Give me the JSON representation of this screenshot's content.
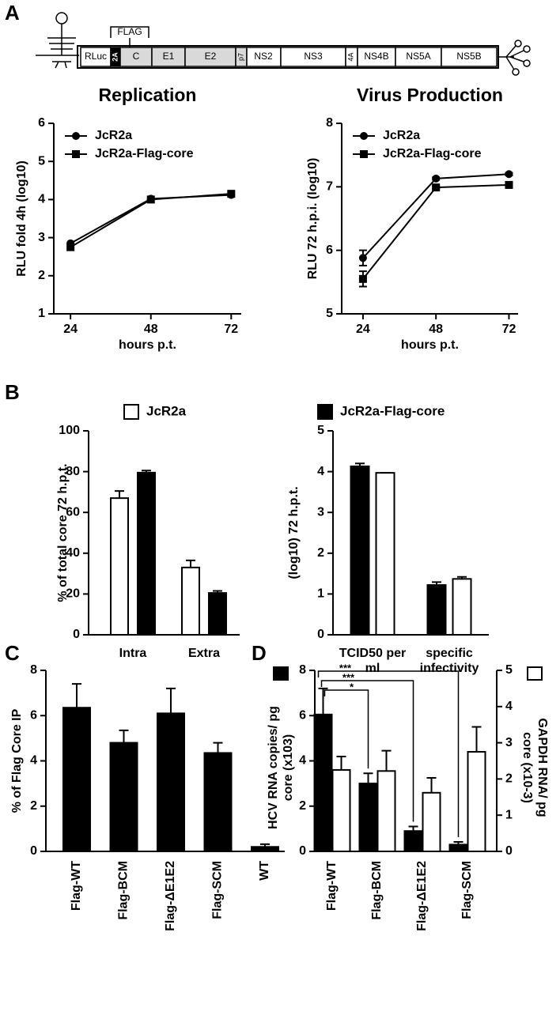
{
  "panel_labels": [
    "A",
    "B",
    "C",
    "D"
  ],
  "genome": {
    "flag": "FLAG",
    "segments": [
      "RLuc",
      "2A",
      "C",
      "E1",
      "E2",
      "p7",
      "NS2",
      "NS3",
      "4A",
      "NS4B",
      "NS5A",
      "NS5B"
    ]
  },
  "chart_data": [
    {
      "type": "line",
      "title": "Replication",
      "x_label": "hours p.t.",
      "y_label": "RLU fold 4h (log10)",
      "x": [
        24,
        48,
        72
      ],
      "xlim": [
        19,
        75
      ],
      "xticks": [
        24,
        48,
        72
      ],
      "ylim": [
        1,
        6
      ],
      "yticks": [
        1,
        2,
        3,
        4,
        5,
        6
      ],
      "legend": "upper left",
      "series": [
        {
          "name": "JcR2a",
          "marker": "circle",
          "color": "#000000",
          "values": [
            2.85,
            4.02,
            4.12
          ]
        },
        {
          "name": "JcR2a-Flag-core",
          "marker": "square",
          "color": "#000000",
          "values": [
            2.75,
            4.0,
            4.15
          ]
        }
      ]
    },
    {
      "type": "line",
      "title": "Virus Production",
      "x_label": "hours p.t.",
      "y_label": "RLU 72 h.p.i. (log10)",
      "x": [
        24,
        48,
        72
      ],
      "xlim": [
        17,
        75
      ],
      "xticks": [
        24,
        48,
        72
      ],
      "ylim": [
        5,
        8
      ],
      "yticks": [
        5,
        6,
        7,
        8
      ],
      "legend": "upper left",
      "series": [
        {
          "name": "JcR2a",
          "marker": "circle",
          "color": "#000000",
          "values": [
            5.88,
            7.13,
            7.2
          ],
          "errors": [
            0.12,
            0.02,
            0.02
          ]
        },
        {
          "name": "JcR2a-Flag-core",
          "marker": "square",
          "color": "#000000",
          "values": [
            5.55,
            6.99,
            7.03
          ],
          "errors": [
            0.12,
            0.02,
            0.02
          ]
        }
      ]
    },
    {
      "type": "bar",
      "y_label": "% of total core 72 h.p.t.",
      "categories": [
        "Intra",
        "Extra"
      ],
      "ylim": [
        0,
        100
      ],
      "yticks": [
        0,
        20,
        40,
        60,
        80,
        100
      ],
      "series": [
        {
          "name": "JcR2a",
          "color": "#ffffff",
          "values": [
            67,
            33
          ],
          "errors": [
            3.5,
            3.5
          ]
        },
        {
          "color": "#000000",
          "values": [
            79.5,
            20.5
          ],
          "errors": [
            1,
            1
          ]
        }
      ]
    },
    {
      "type": "bar",
      "y_label": "(log10) 72 h.p.t.",
      "categories": [
        "TCID50 per ml",
        "specific infectivity"
      ],
      "ylim": [
        0,
        5
      ],
      "yticks": [
        0,
        1,
        2,
        3,
        4,
        5
      ],
      "series": [
        {
          "name": "JcR2a-Flag-core",
          "color": "#000000",
          "values": [
            4.13,
            1.22
          ],
          "errors": [
            0.07,
            0.07
          ]
        },
        {
          "color": "#ffffff",
          "values": [
            3.97,
            1.37
          ],
          "errors": [
            0.0,
            0.05
          ]
        }
      ]
    },
    {
      "type": "bar",
      "y_label": "% of Flag Core IP",
      "categories": [
        "Flag-WT",
        "Flag-BCM",
        "Flag-ΔE1E2",
        "Flag-SCM",
        "WT"
      ],
      "ylim": [
        0,
        8
      ],
      "yticks": [
        0,
        2,
        4,
        6,
        8
      ],
      "series": [
        {
          "color": "#000000",
          "values": [
            6.35,
            4.8,
            6.1,
            4.35,
            0.2
          ],
          "errors": [
            1.05,
            0.55,
            1.1,
            0.45,
            0.12
          ]
        }
      ]
    },
    {
      "type": "bar",
      "categories": [
        "Flag-WT",
        "Flag-BCM",
        "Flag-ΔE1E2",
        "Flag-SCM"
      ],
      "ylim": [
        0,
        8
      ],
      "yticks": [
        0,
        2,
        4,
        6,
        8
      ],
      "y2lim": [
        0,
        5
      ],
      "y2ticks": [
        0,
        1,
        2,
        3,
        4,
        5
      ],
      "annotations": [
        "***",
        "***",
        "*"
      ],
      "series": [
        {
          "name": "HCV RNA copies/ pg core (x103)",
          "color": "#000000",
          "values": [
            6.05,
            3.0,
            0.9,
            0.3
          ],
          "errors": [
            1.15,
            0.45,
            0.2,
            0.12
          ]
        },
        {
          "name": "GAPDH RNA/ pg core (x10-3)",
          "color": "#ffffff",
          "axis": "y2",
          "values": [
            2.25,
            2.22,
            1.62,
            2.75
          ],
          "errors": [
            0.37,
            0.56,
            0.41,
            0.69
          ]
        }
      ]
    }
  ]
}
